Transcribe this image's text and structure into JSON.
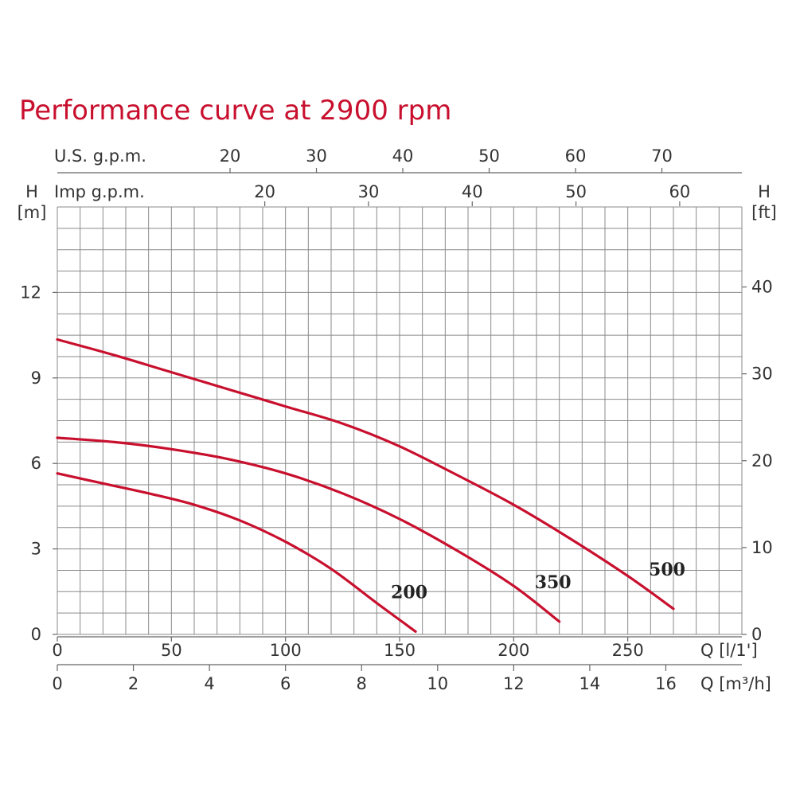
{
  "chart_data": {
    "type": "line",
    "title": "Performance curve at 2900 rpm",
    "colors": {
      "curve": "#c8102e",
      "title": "#c8102e",
      "grid": "#8a8a8a"
    },
    "grid": true,
    "axes": {
      "x_primary": {
        "label": "Q [l/1']",
        "range": [
          0,
          300
        ],
        "ticks": [
          0,
          50,
          100,
          150,
          200,
          250
        ]
      },
      "x_m3h": {
        "label": "Q [m³/h]",
        "ticks": [
          0,
          2,
          4,
          6,
          8,
          10,
          12,
          14,
          16
        ],
        "per_unit_lmin": 16.667
      },
      "x_usgpm": {
        "label": "U.S. g.p.m.",
        "ticks": [
          20,
          30,
          40,
          50,
          60,
          70
        ],
        "per_unit_lmin": 3.785
      },
      "x_impgpm": {
        "label": "Imp g.p.m.",
        "ticks": [
          20,
          30,
          40,
          50,
          60
        ],
        "per_unit_lmin": 4.546
      },
      "y_left": {
        "label_top": "H",
        "label_unit": "[m]",
        "range": [
          0,
          15
        ],
        "ticks": [
          0,
          3,
          6,
          9,
          12
        ]
      },
      "y_right": {
        "label_top": "H",
        "label_unit": "[ft]",
        "ticks": [
          0,
          10,
          20,
          30,
          40
        ],
        "per_unit_m": 0.3048
      }
    },
    "series": [
      {
        "name": "200",
        "x": [
          0,
          20,
          40,
          60,
          80,
          100,
          120,
          140,
          157
        ],
        "y": [
          5.65,
          5.3,
          4.95,
          4.55,
          4.0,
          3.25,
          2.3,
          1.1,
          0.1
        ]
      },
      {
        "name": "350",
        "x": [
          0,
          25,
          50,
          75,
          100,
          125,
          150,
          175,
          200,
          220
        ],
        "y": [
          6.9,
          6.75,
          6.5,
          6.15,
          5.65,
          4.95,
          4.05,
          2.95,
          1.7,
          0.45
        ]
      },
      {
        "name": "500",
        "x": [
          0,
          25,
          50,
          75,
          100,
          125,
          150,
          175,
          200,
          225,
          250,
          270
        ],
        "y": [
          10.35,
          9.8,
          9.2,
          8.6,
          8.0,
          7.4,
          6.6,
          5.6,
          4.55,
          3.35,
          2.05,
          0.9
        ]
      }
    ]
  }
}
